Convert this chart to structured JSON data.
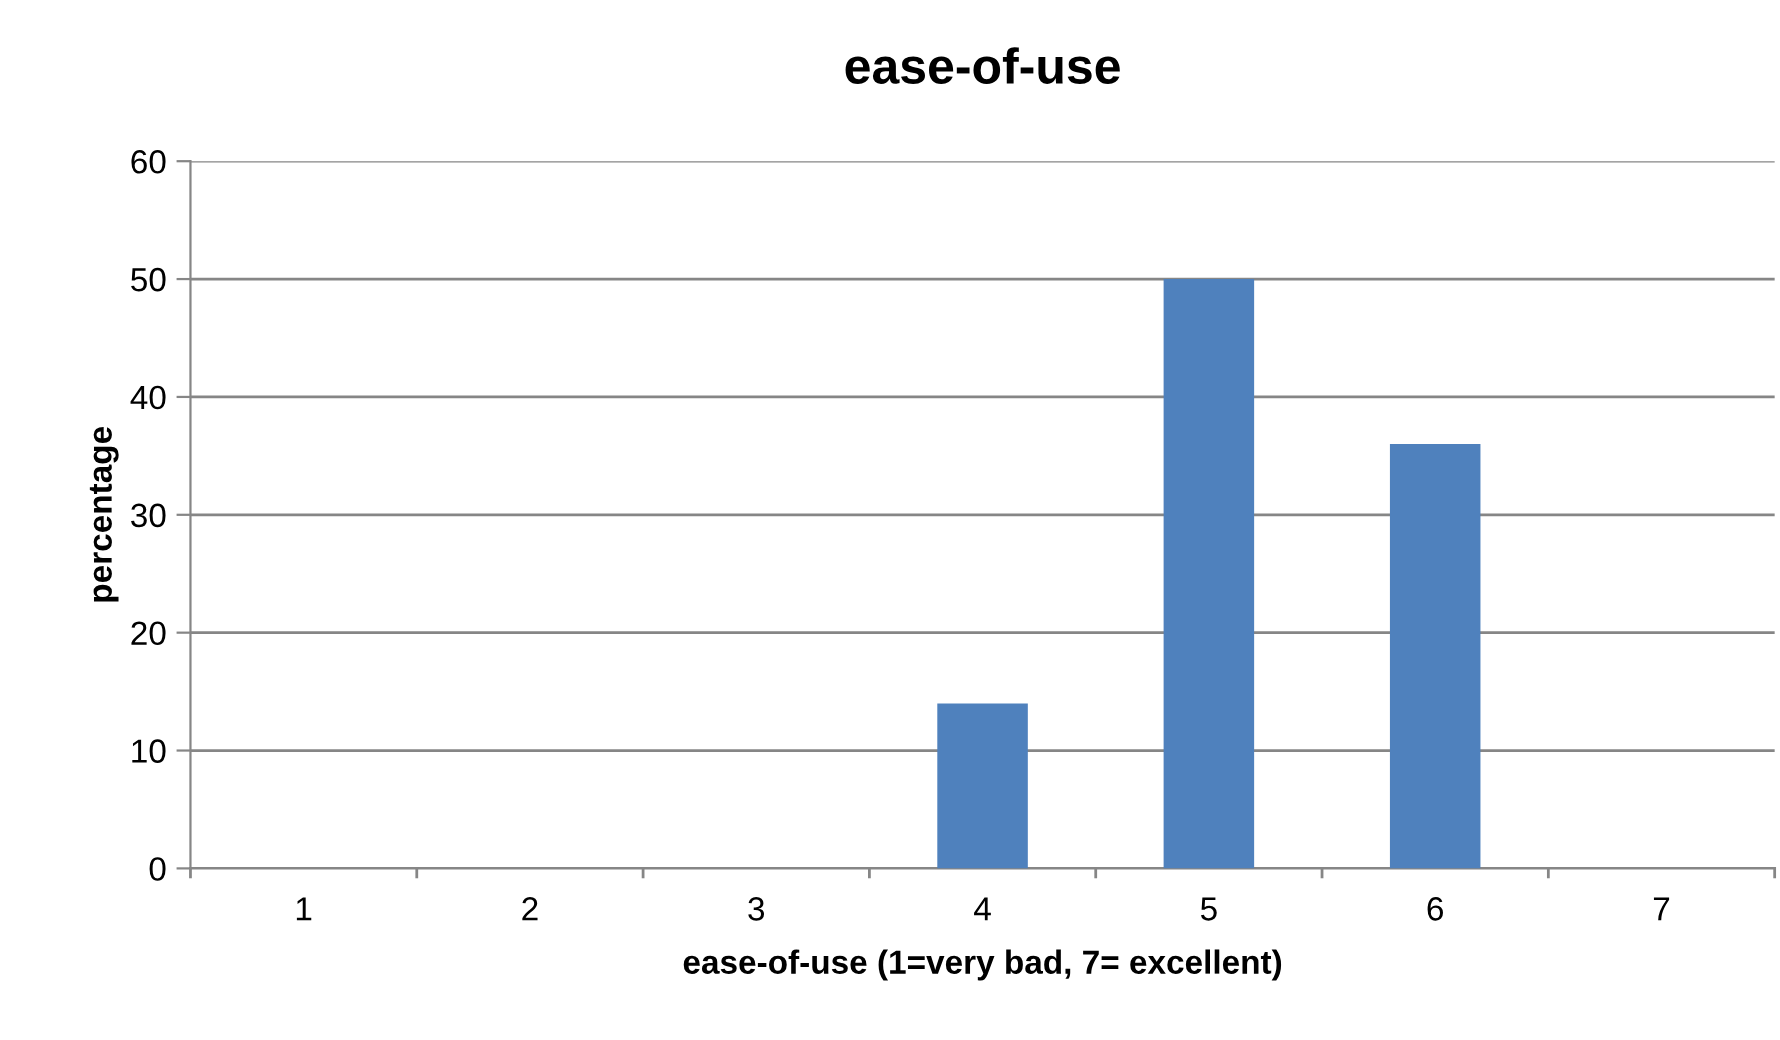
{
  "chart_data": {
    "type": "bar",
    "title": "ease-of-use",
    "xlabel": "ease-of-use (1=very bad, 7= excellent)",
    "ylabel": "percentage",
    "categories": [
      "1",
      "2",
      "3",
      "4",
      "5",
      "6",
      "7"
    ],
    "values": [
      0,
      0,
      0,
      14,
      50,
      36,
      0
    ],
    "color": "#4f81bd",
    "ylim": [
      0,
      60
    ],
    "yticks": [
      0,
      10,
      20,
      30,
      40,
      50,
      60
    ],
    "grid": "y",
    "legend": false
  }
}
